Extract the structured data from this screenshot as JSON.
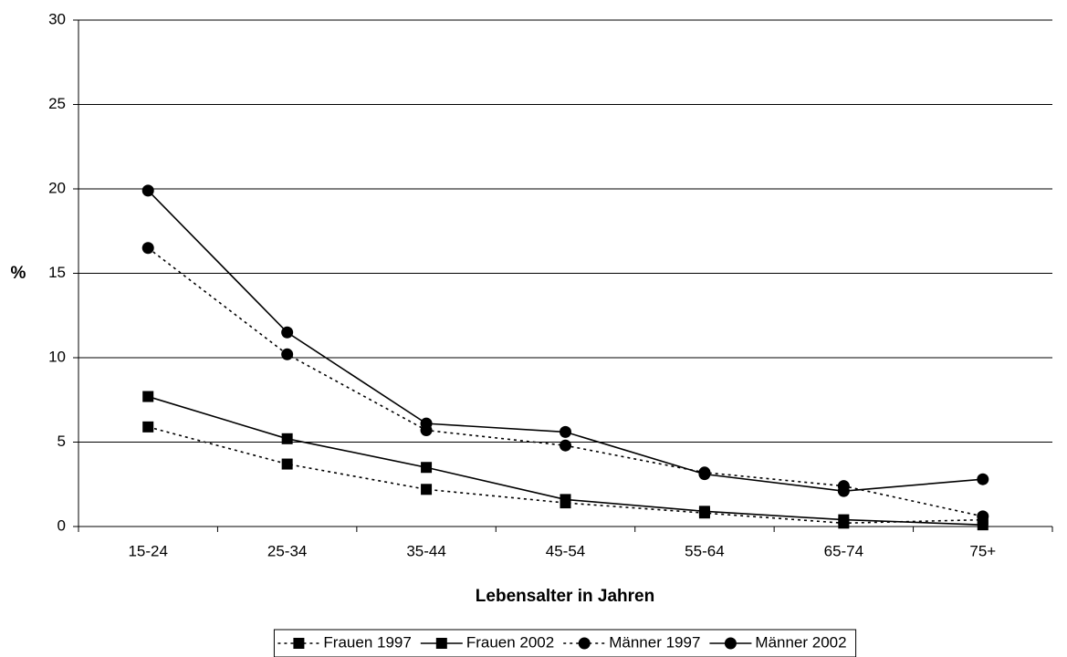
{
  "chart_data": {
    "type": "line",
    "y_label": "%",
    "x_label": "Lebensalter in Jahren",
    "categories": [
      "15-24",
      "25-34",
      "35-44",
      "45-54",
      "55-64",
      "65-74",
      "75+"
    ],
    "series": [
      {
        "name": "Frauen 1997",
        "color": "#000000",
        "line_style": "dotted",
        "marker": "square",
        "values": [
          5.9,
          3.7,
          2.2,
          1.4,
          0.8,
          0.2,
          0.4
        ]
      },
      {
        "name": "Frauen 2002",
        "color": "#000000",
        "line_style": "solid",
        "marker": "square",
        "values": [
          7.7,
          5.2,
          3.5,
          1.6,
          0.9,
          0.4,
          0.1
        ]
      },
      {
        "name": "Männer 1997",
        "color": "#000000",
        "line_style": "dotted",
        "marker": "circle",
        "values": [
          16.5,
          10.2,
          5.7,
          4.8,
          3.2,
          2.4,
          0.6
        ]
      },
      {
        "name": "Männer 2002",
        "color": "#000000",
        "line_style": "solid",
        "marker": "circle",
        "values": [
          19.9,
          11.5,
          6.1,
          5.6,
          3.1,
          2.1,
          2.8
        ]
      }
    ],
    "ylim": [
      0,
      30
    ],
    "yticks": [
      0,
      5,
      10,
      15,
      20,
      25,
      30
    ],
    "grid": true,
    "legend": "bottom"
  }
}
